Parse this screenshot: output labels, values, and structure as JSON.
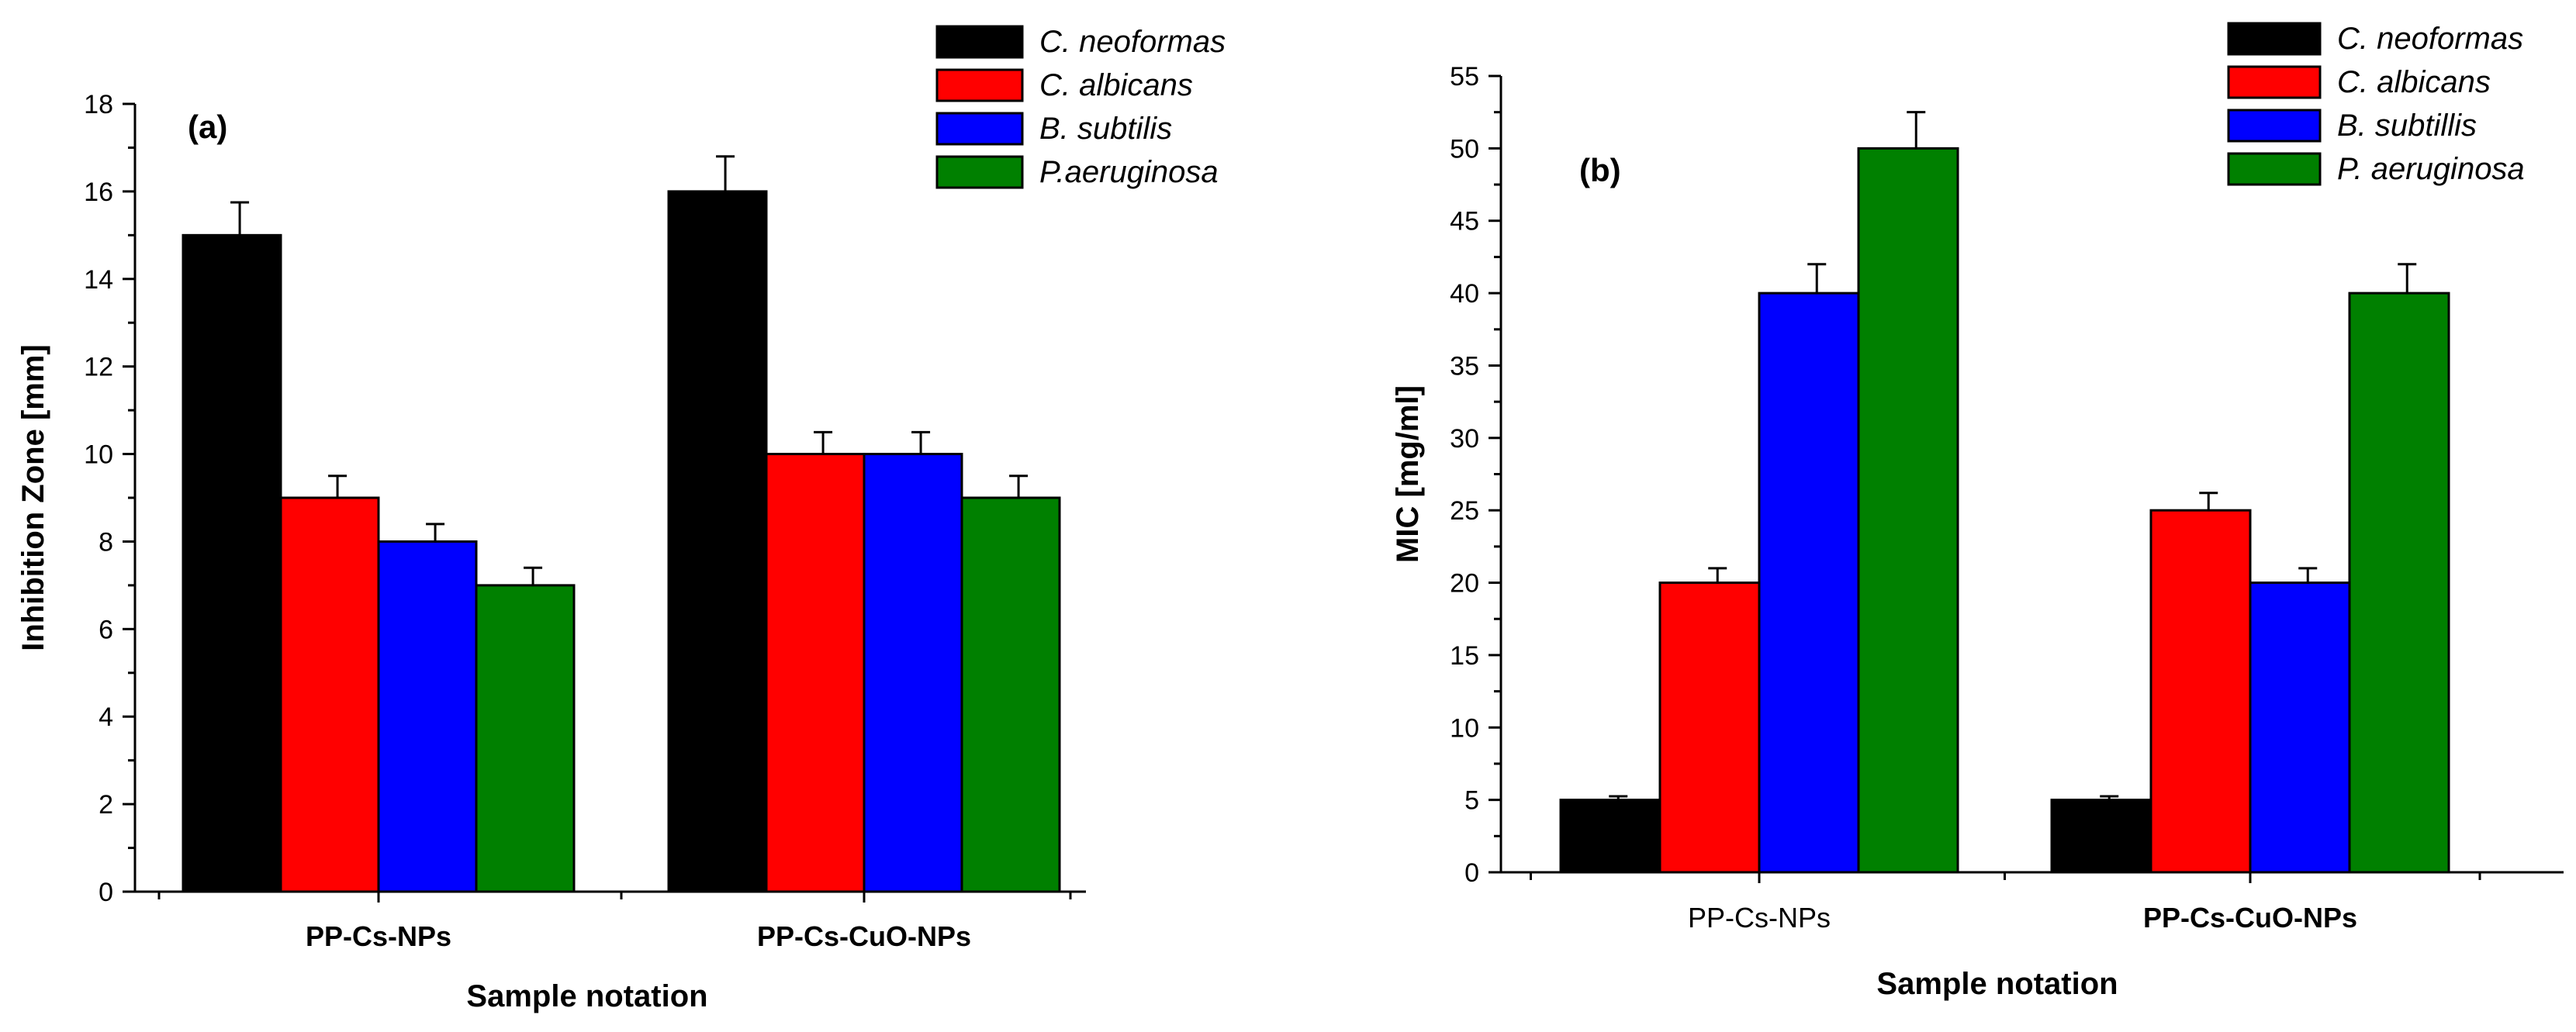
{
  "chart_data": [
    {
      "type": "bar",
      "panel_label": "(a)",
      "categories": [
        "PP-Cs-NPs",
        "PP-Cs-CuO-NPs"
      ],
      "category_label_bold": [
        true,
        true
      ],
      "xlabel": "Sample notation",
      "ylabel": "Inhibition Zone [mm]",
      "ylim": [
        0,
        18
      ],
      "yticks": [
        0,
        2,
        4,
        6,
        8,
        10,
        12,
        14,
        16,
        18
      ],
      "grid": false,
      "legend_position": "top-right",
      "series": [
        {
          "name": "C. neoformas",
          "color": "#000000",
          "values": [
            15,
            16
          ],
          "errors": [
            0.75,
            0.8
          ]
        },
        {
          "name": "C. albicans",
          "color": "#ff0000",
          "values": [
            9,
            10
          ],
          "errors": [
            0.5,
            0.5
          ]
        },
        {
          "name": "B. subtilis",
          "color": "#0000ff",
          "values": [
            8,
            10
          ],
          "errors": [
            0.4,
            0.5
          ]
        },
        {
          "name": "P.aeruginosa",
          "color": "#008000",
          "values": [
            7,
            9
          ],
          "errors": [
            0.4,
            0.5
          ]
        }
      ]
    },
    {
      "type": "bar",
      "panel_label": "(b)",
      "categories": [
        "PP-Cs-NPs",
        "PP-Cs-CuO-NPs"
      ],
      "category_label_bold": [
        false,
        true
      ],
      "xlabel": "Sample notation",
      "ylabel": "MIC [mg/ml]",
      "ylim": [
        0,
        55
      ],
      "yticks": [
        0,
        5,
        10,
        15,
        20,
        25,
        30,
        35,
        40,
        45,
        50,
        55
      ],
      "grid": false,
      "legend_position": "top-right",
      "series": [
        {
          "name": "C. neoformas",
          "color": "#000000",
          "values": [
            5,
            5
          ],
          "errors": [
            0.25,
            0.25
          ]
        },
        {
          "name": "C. albicans",
          "color": "#ff0000",
          "values": [
            20,
            25
          ],
          "errors": [
            1,
            1.2
          ]
        },
        {
          "name": "B. subtillis",
          "color": "#0000ff",
          "values": [
            40,
            20
          ],
          "errors": [
            2,
            1
          ]
        },
        {
          "name": "P. aeruginosa",
          "color": "#008000",
          "values": [
            50,
            40
          ],
          "errors": [
            2.5,
            2
          ]
        }
      ]
    }
  ]
}
